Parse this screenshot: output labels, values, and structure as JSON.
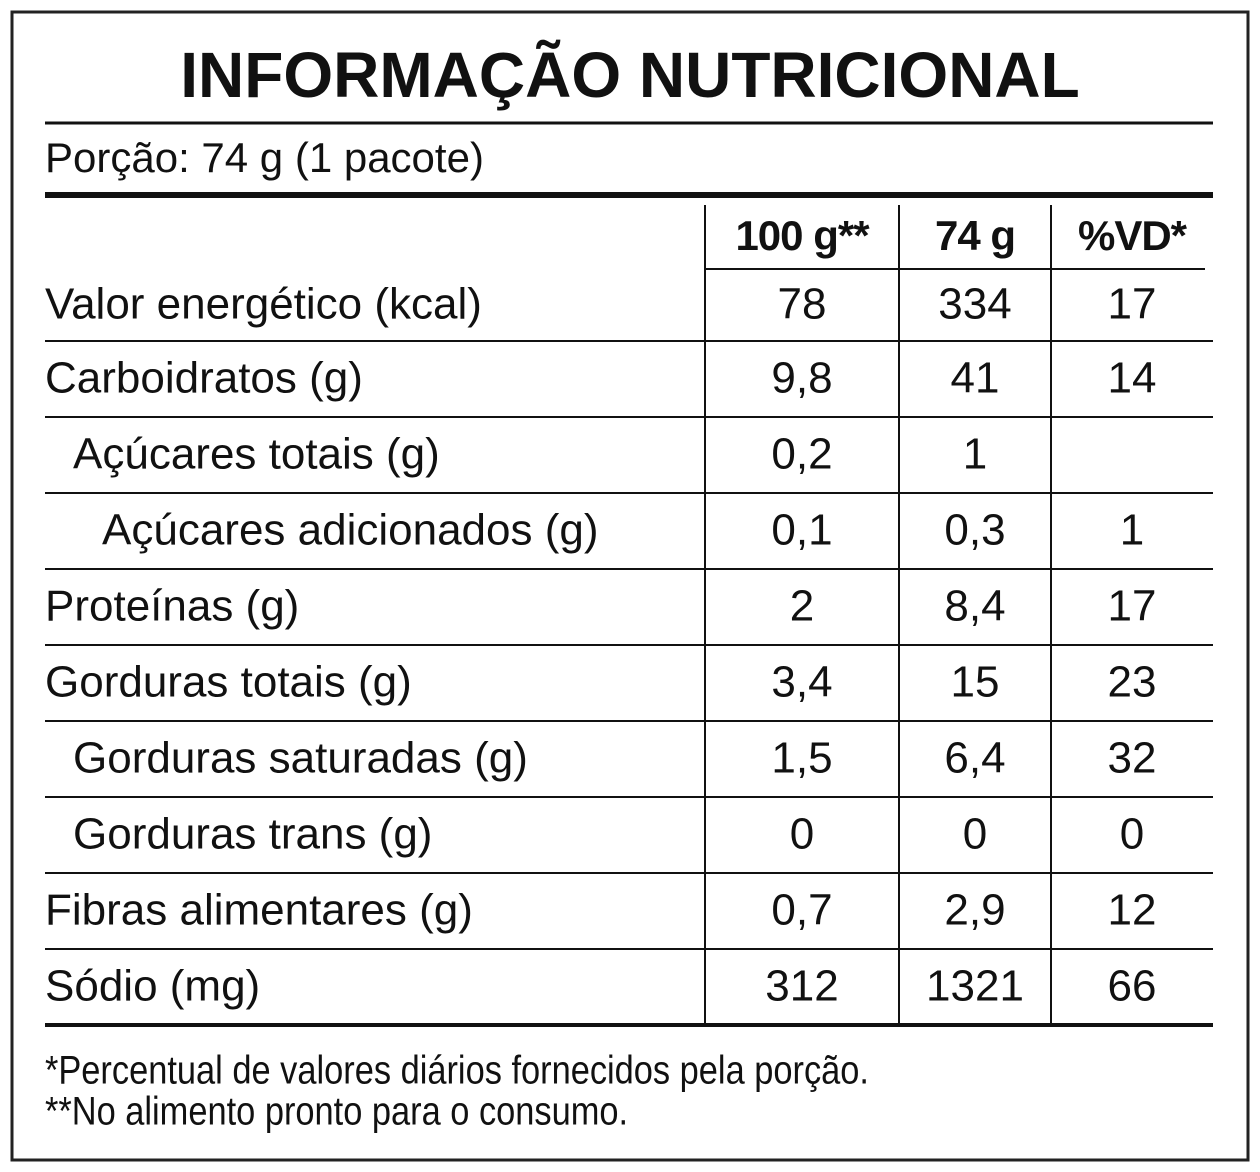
{
  "header": {
    "title": "INFORMAÇÃO NUTRICIONAL",
    "portion": "Porção: 74 g (1 pacote)"
  },
  "table": {
    "columns": [
      "100 g**",
      "74 g",
      "%VD*"
    ],
    "rows": [
      {
        "label": "Valor energético (kcal)",
        "level": 0,
        "values": [
          "78",
          "334",
          "17"
        ]
      },
      {
        "label": "Carboidratos (g)",
        "level": 0,
        "values": [
          "9,8",
          "41",
          "14"
        ]
      },
      {
        "label": "Açúcares totais (g)",
        "level": 1,
        "values": [
          "0,2",
          "1",
          null
        ]
      },
      {
        "label": "Açúcares adicionados (g)",
        "level": 2,
        "values": [
          "0,1",
          "0,3",
          "1"
        ]
      },
      {
        "label": "Proteínas (g)",
        "level": 0,
        "values": [
          "2",
          "8,4",
          "17"
        ]
      },
      {
        "label": "Gorduras totais (g)",
        "level": 0,
        "values": [
          "3,4",
          "15",
          "23"
        ]
      },
      {
        "label": "Gorduras saturadas (g)",
        "level": 1,
        "values": [
          "1,5",
          "6,4",
          "32"
        ]
      },
      {
        "label": "Gorduras trans (g)",
        "level": 1,
        "values": [
          "0",
          "0",
          "0"
        ]
      },
      {
        "label": "Fibras alimentares (g)",
        "level": 0,
        "values": [
          "0,7",
          "2,9",
          "12"
        ]
      },
      {
        "label": "Sódio (mg)",
        "level": 0,
        "values": [
          "312",
          "1321",
          "66"
        ]
      }
    ]
  },
  "footnotes": [
    "*Percentual de valores diários fornecidos pela porção.",
    "**No alimento pronto para o consumo."
  ]
}
